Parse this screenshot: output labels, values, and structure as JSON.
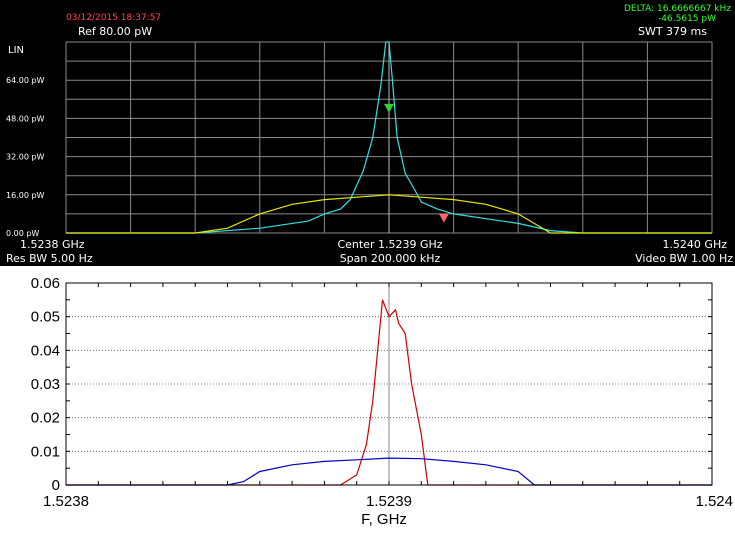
{
  "spectrum_analyzer": {
    "timestamp": "03/12/2015 18:37:57",
    "ref_level": "Ref  80.00 pW",
    "scale": "LIN",
    "delta_freq": "DELTA: 16.6666667 kHz",
    "delta_amp": "-46.5615 pW",
    "swt": "SWT 379 ms",
    "start_freq": "1.5238 GHz",
    "center_freq": "Center 1.5239 GHz",
    "stop_freq": "1.5240 GHz",
    "res_bw": "Res BW 5.00  Hz",
    "span": "Span 200.000 kHz",
    "video_bw": "Video BW 1.00  Hz",
    "colors": {
      "background": "#000000",
      "grid": "#8a8a8a",
      "trace_cyan": "#33e0e0",
      "trace_yellow": "#e8e800",
      "marker_green": "#33cc33",
      "marker_red": "#ff6666",
      "timestamp": "#ff4444",
      "delta": "#33ff33",
      "text": "#ffffff"
    }
  },
  "chart_data": [
    {
      "type": "line",
      "xlim": [
        1.5238,
        1.524
      ],
      "ylim": [
        0,
        80
      ],
      "ytick_values": [
        0,
        16,
        32,
        48,
        64
      ],
      "yticks": [
        "0.00 pW",
        "16.00 pW",
        "32.00 pW",
        "48.00 pW",
        "64.00 pW"
      ],
      "series": [
        {
          "color": "#33e0e0",
          "x": [
            1.5238,
            1.52384,
            1.52386,
            1.523875,
            1.52388,
            1.523885,
            1.523888,
            1.52389,
            1.523892,
            1.523895,
            1.5238975,
            1.523899,
            1.5239,
            1.523901,
            1.5239025,
            1.523905,
            1.523908,
            1.52391,
            1.523915,
            1.52392,
            1.52393,
            1.52394,
            1.52395,
            1.52396,
            1.524
          ],
          "y": [
            0,
            0,
            2,
            5,
            8,
            10,
            14,
            20,
            26,
            40,
            62,
            80,
            80,
            65,
            40,
            25,
            18,
            13,
            10,
            8,
            6,
            4,
            1,
            0,
            0
          ]
        },
        {
          "color": "#e8e800",
          "x": [
            1.5238,
            1.52384,
            1.52385,
            1.52386,
            1.52387,
            1.52388,
            1.52389,
            1.5239,
            1.52391,
            1.52392,
            1.52393,
            1.52394,
            1.52395,
            1.524
          ],
          "y": [
            0,
            0,
            2,
            8,
            12,
            14,
            15,
            16,
            15,
            14,
            12,
            8,
            0,
            0
          ]
        }
      ],
      "markers": [
        {
          "x": 1.5239,
          "y": 52,
          "color": "#33cc33"
        },
        {
          "x": 1.523917,
          "y": 6,
          "color": "#ff6666"
        }
      ]
    },
    {
      "type": "line",
      "xlabel": "F, GHz",
      "xlim": [
        1.5238,
        1.524
      ],
      "ylim": [
        0,
        0.06
      ],
      "xticks": [
        "1.5238",
        "1.5239",
        "1.524"
      ],
      "xtick_values": [
        1.5238,
        1.5239,
        1.524
      ],
      "yticks": [
        "0",
        "0.01",
        "0.02",
        "0.03",
        "0.04",
        "0.05",
        "0.06"
      ],
      "ytick_values": [
        0,
        0.01,
        0.02,
        0.03,
        0.04,
        0.05,
        0.06
      ],
      "grid": "horizontal",
      "vline_x": 1.5239,
      "series": [
        {
          "color": "#cc0000",
          "x": [
            1.5238,
            1.523885,
            1.52389,
            1.523893,
            1.523895,
            1.523897,
            1.523898,
            1.5239,
            1.523902,
            1.523903,
            1.523905,
            1.523907,
            1.52391,
            1.523912,
            1.524
          ],
          "y": [
            0,
            0,
            0.003,
            0.012,
            0.025,
            0.045,
            0.055,
            0.05,
            0.052,
            0.048,
            0.045,
            0.03,
            0.015,
            0,
            0
          ]
        },
        {
          "color": "#0000cc",
          "x": [
            1.5238,
            1.52385,
            1.523855,
            1.52386,
            1.52387,
            1.52388,
            1.52389,
            1.5239,
            1.52391,
            1.52392,
            1.52393,
            1.52394,
            1.523945,
            1.524
          ],
          "y": [
            0,
            0,
            0.001,
            0.004,
            0.006,
            0.007,
            0.0075,
            0.008,
            0.0078,
            0.007,
            0.006,
            0.004,
            0,
            0
          ]
        }
      ]
    }
  ]
}
